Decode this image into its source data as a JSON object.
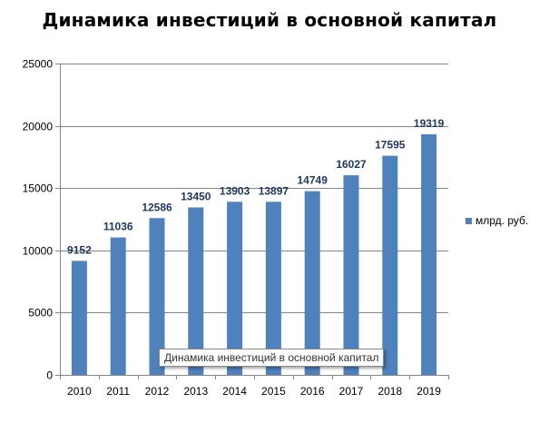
{
  "chart_data": {
    "type": "bar",
    "title": "Динамика инвестиций в основной капитал",
    "categories": [
      "2010",
      "2011",
      "2012",
      "2013",
      "2014",
      "2015",
      "2016",
      "2017",
      "2018",
      "2019"
    ],
    "series": [
      {
        "name": "млрд. руб.",
        "values": [
          9152,
          11036,
          12586,
          13450,
          13903,
          13897,
          14749,
          16027,
          17595,
          19319
        ]
      }
    ],
    "xlabel": "",
    "ylabel": "",
    "ylim": [
      0,
      25000
    ],
    "yticks": [
      0,
      5000,
      10000,
      15000,
      20000,
      25000
    ],
    "grid": true,
    "legend_position": "right",
    "data_labels": true
  },
  "colors": {
    "bar": "#4f81bd",
    "data_label": "#1f3864",
    "grid": "#868686"
  },
  "tooltip": {
    "text": "Динамика инвестиций в основной капитал"
  }
}
